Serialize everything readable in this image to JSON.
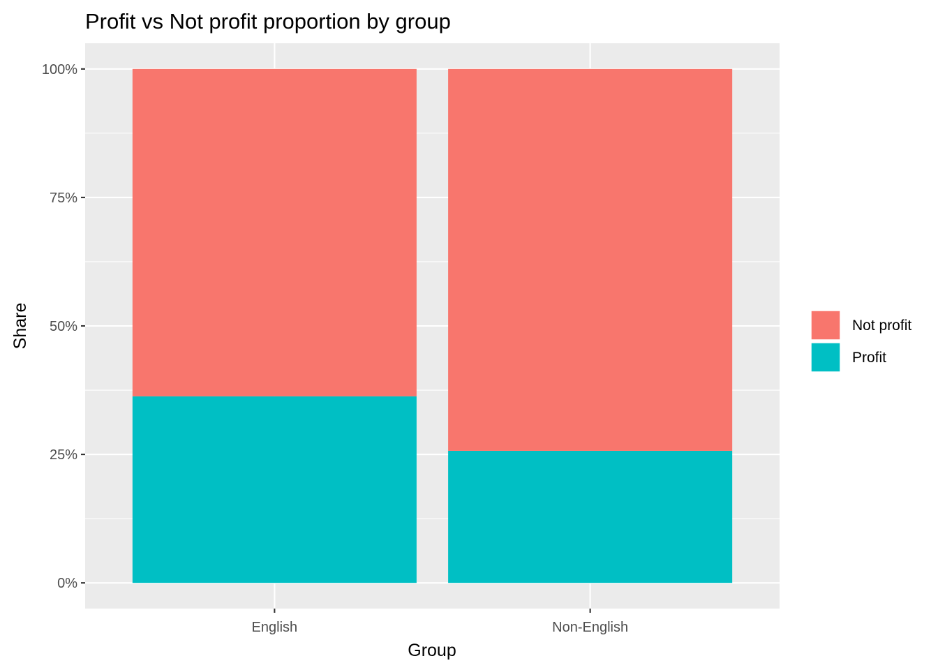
{
  "chart_data": {
    "type": "bar",
    "stacked": true,
    "title": "Profit vs Not profit proportion by group",
    "xlabel": "Group",
    "ylabel": "Share",
    "categories": [
      "English",
      "Non-English"
    ],
    "series": [
      {
        "name": "Profit",
        "values": [
          0.363,
          0.257
        ],
        "color": "#00BFC4"
      },
      {
        "name": "Not profit",
        "values": [
          0.637,
          0.743
        ],
        "color": "#F8766D"
      }
    ],
    "ylim": [
      -0.05,
      1.05
    ],
    "yticks": [
      0,
      0.25,
      0.5,
      0.75,
      1.0
    ],
    "ytick_labels": [
      "0%",
      "25%",
      "50%",
      "75%",
      "100%"
    ],
    "grid": true,
    "panel_background": "#EBEBEB",
    "grid_color": "#FFFFFF",
    "legend": {
      "placement": "right",
      "items": [
        {
          "label": "Not profit",
          "color": "#F8766D"
        },
        {
          "label": "Profit",
          "color": "#00BFC4"
        }
      ]
    }
  }
}
